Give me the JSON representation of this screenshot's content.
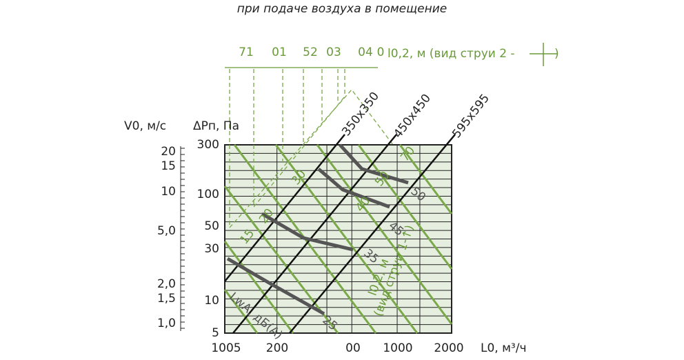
{
  "subtitle": "при подаче воздуха в помещение",
  "top_axis": {
    "labels": [
      "71",
      "01",
      "52",
      "03",
      "04",
      "0"
    ],
    "title": "l0,2, м (вид струи 2 -",
    "close": ")"
  },
  "left_axis": {
    "title": "V0, м/с",
    "labels": [
      "20",
      "15",
      "10",
      "5,0",
      "2,0",
      "1,5",
      "1,0"
    ]
  },
  "pressure_axis": {
    "title": "ΔPп, Па",
    "labels": [
      "300",
      "100",
      "50",
      "30",
      "10",
      "5"
    ]
  },
  "bottom_axis": {
    "labels": [
      "1005",
      "200",
      "00",
      "1000",
      "2000"
    ],
    "title": "L0, м³/ч"
  },
  "sizes": [
    "350x350",
    "450x450",
    "595x595"
  ],
  "throw_labels": [
    "15",
    "20",
    "30",
    "40",
    "50",
    "70"
  ],
  "noise_labels": [
    "25",
    "35",
    "45",
    "50"
  ],
  "noise_title": "LwA, дБ(А)",
  "throw_title": "l0,2, м",
  "throw_note": "(вид струи 1-↑)"
}
